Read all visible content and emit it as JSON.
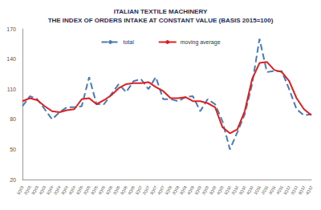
{
  "chart_data": {
    "type": "line",
    "title": "ITALIAN TEXTILE MACHINERY\nTHE INDEX OF ORDERS INTAKE AT CONSTANT VALUE (BASIS 2015=100)",
    "categories": [
      "1Q03",
      "2Q03",
      "3Q03",
      "4Q03",
      "1Q04",
      "2Q04",
      "3Q04",
      "4Q04",
      "1Q05",
      "2Q05",
      "3Q05",
      "4Q05",
      "1Q06",
      "2Q06",
      "3Q06",
      "4Q06",
      "1Q07",
      "2Q07",
      "3Q07",
      "4Q07",
      "1Q08",
      "2Q08",
      "3Q08",
      "4Q08",
      "1Q09",
      "2Q09",
      "3Q09",
      "4Q09",
      "1Q10",
      "2Q10",
      "3Q10",
      "4Q10",
      "1Q11",
      "2Q11",
      "3Q11",
      "4Q11",
      "1Q12",
      "2Q12",
      "3Q12",
      "4Q12"
    ],
    "series": [
      {
        "name": "total",
        "color": "#4a7ab8",
        "line_style": "dashed",
        "values": [
          93,
          103,
          100,
          90,
          80,
          87,
          92,
          92,
          93,
          122,
          95,
          95,
          105,
          115,
          107,
          118,
          120,
          110,
          122,
          100,
          100,
          98,
          102,
          103,
          88,
          100,
          95,
          78,
          50,
          67,
          85,
          115,
          160,
          127,
          128,
          128,
          110,
          90,
          84,
          85
        ]
      },
      {
        "name": "moving average",
        "color": "#e02020",
        "line_style": "solid",
        "values": [
          98,
          101,
          99,
          93,
          88,
          87,
          89,
          90,
          100,
          101,
          95,
          99,
          104,
          111,
          115,
          116,
          116,
          117,
          112,
          108,
          101,
          101,
          102,
          98,
          98,
          96,
          92,
          72,
          66,
          70,
          88,
          120,
          136,
          137,
          129,
          127,
          118,
          101,
          90,
          84
        ]
      }
    ],
    "ylim": [
      20,
      170
    ],
    "yticks": [
      20,
      50,
      80,
      110,
      140,
      170
    ],
    "grid": false,
    "legend": "top"
  }
}
